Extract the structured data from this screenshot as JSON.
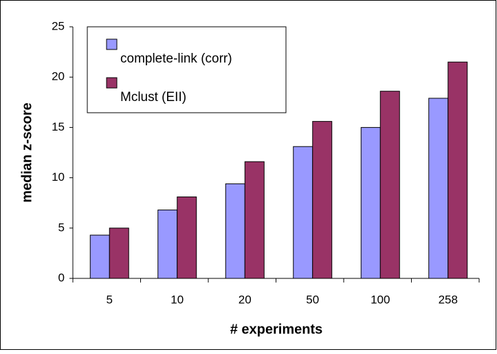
{
  "chart_data": {
    "type": "bar",
    "x_label": "# experiments",
    "y_label": "median z-score",
    "categories": [
      "5",
      "10",
      "20",
      "50",
      "100",
      "258"
    ],
    "series": [
      {
        "name": "complete-link (corr)",
        "color": "#9999ff",
        "values": [
          4.3,
          6.8,
          9.4,
          13.1,
          15.0,
          17.9
        ]
      },
      {
        "name": "Mclust (EII)",
        "color": "#993366",
        "values": [
          5.0,
          8.1,
          11.6,
          15.6,
          18.6,
          21.5
        ]
      }
    ],
    "ylim": [
      0,
      25
    ],
    "yticks": [
      0,
      5,
      10,
      15,
      20,
      25
    ],
    "grid": false,
    "legend": "top-left"
  }
}
